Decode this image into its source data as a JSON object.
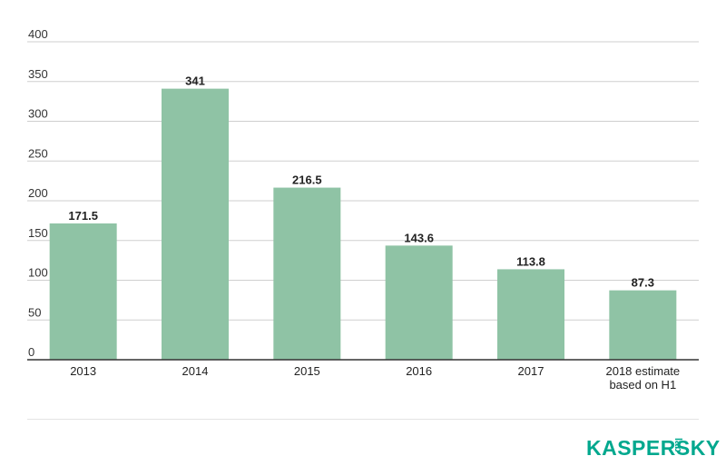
{
  "chart_data": {
    "type": "bar",
    "categories": [
      "2013",
      "2014",
      "2015",
      "2016",
      "2017",
      "2018 estimate\nbased on H1"
    ],
    "values": [
      171.5,
      341,
      216.5,
      143.6,
      113.8,
      87.3
    ],
    "value_labels": [
      "171.5",
      "341",
      "216.5",
      "143.6",
      "113.8",
      "87.3"
    ],
    "yticks": [
      "0",
      "50",
      "100",
      "150",
      "200",
      "250",
      "300",
      "350",
      "400"
    ],
    "ylim": [
      0,
      400
    ],
    "grid": true,
    "legend": "none",
    "bar_color": "#8fc3a5"
  },
  "brand": {
    "logo_text": "KASPERSKY",
    "logo_suffix": "lab",
    "color": "#00a88e"
  }
}
